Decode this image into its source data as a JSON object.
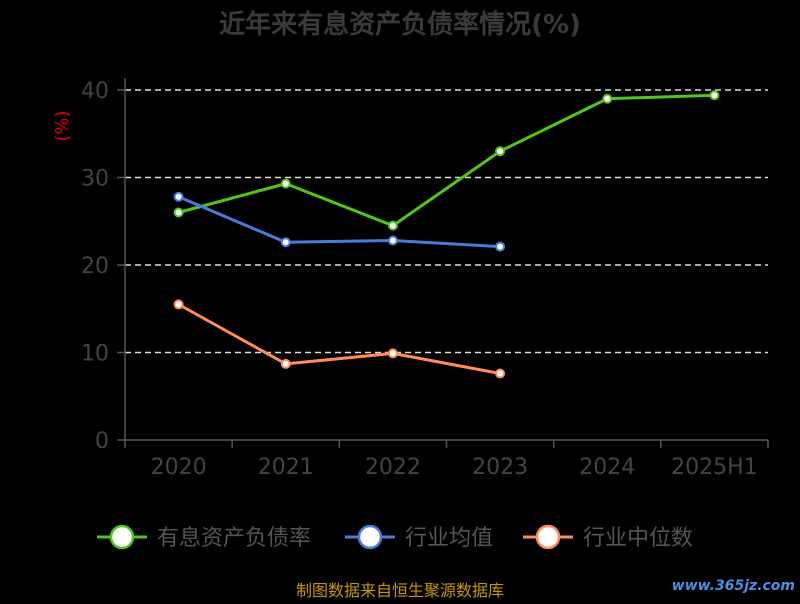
{
  "chart_data": {
    "type": "line",
    "title": "近年来有息资产负债率情况(%)",
    "ylabel": "(%)",
    "xlabel": "",
    "categories": [
      "2020",
      "2021",
      "2022",
      "2023",
      "2024",
      "2025H1"
    ],
    "ylim": [
      0,
      40
    ],
    "yticks": [
      0,
      10,
      20,
      30,
      40
    ],
    "grid": true,
    "legend_position": "bottom",
    "series": [
      {
        "name": "有息资产负债率",
        "color": "#52c41a",
        "values": [
          26.0,
          29.3,
          24.5,
          33.0,
          39.0,
          39.4
        ]
      },
      {
        "name": "行业均值",
        "color": "#4a7bd8",
        "values": [
          27.8,
          22.6,
          22.8,
          22.1,
          null,
          null
        ]
      },
      {
        "name": "行业中位数",
        "color": "#ff8c5a",
        "values": [
          15.5,
          8.7,
          9.9,
          7.6,
          null,
          null
        ]
      }
    ]
  },
  "source_text": "制图数据来自恒生聚源数据库",
  "watermark_text": "www.365jz.com",
  "colors": {
    "title": "#3a3a3a",
    "axis": "#555555",
    "tick_label": "#444444",
    "ylabel": "#e00000",
    "grid": "#dddddd",
    "legend_label": "#555555",
    "source": "#c8960f",
    "watermark": "#4a90e2"
  }
}
